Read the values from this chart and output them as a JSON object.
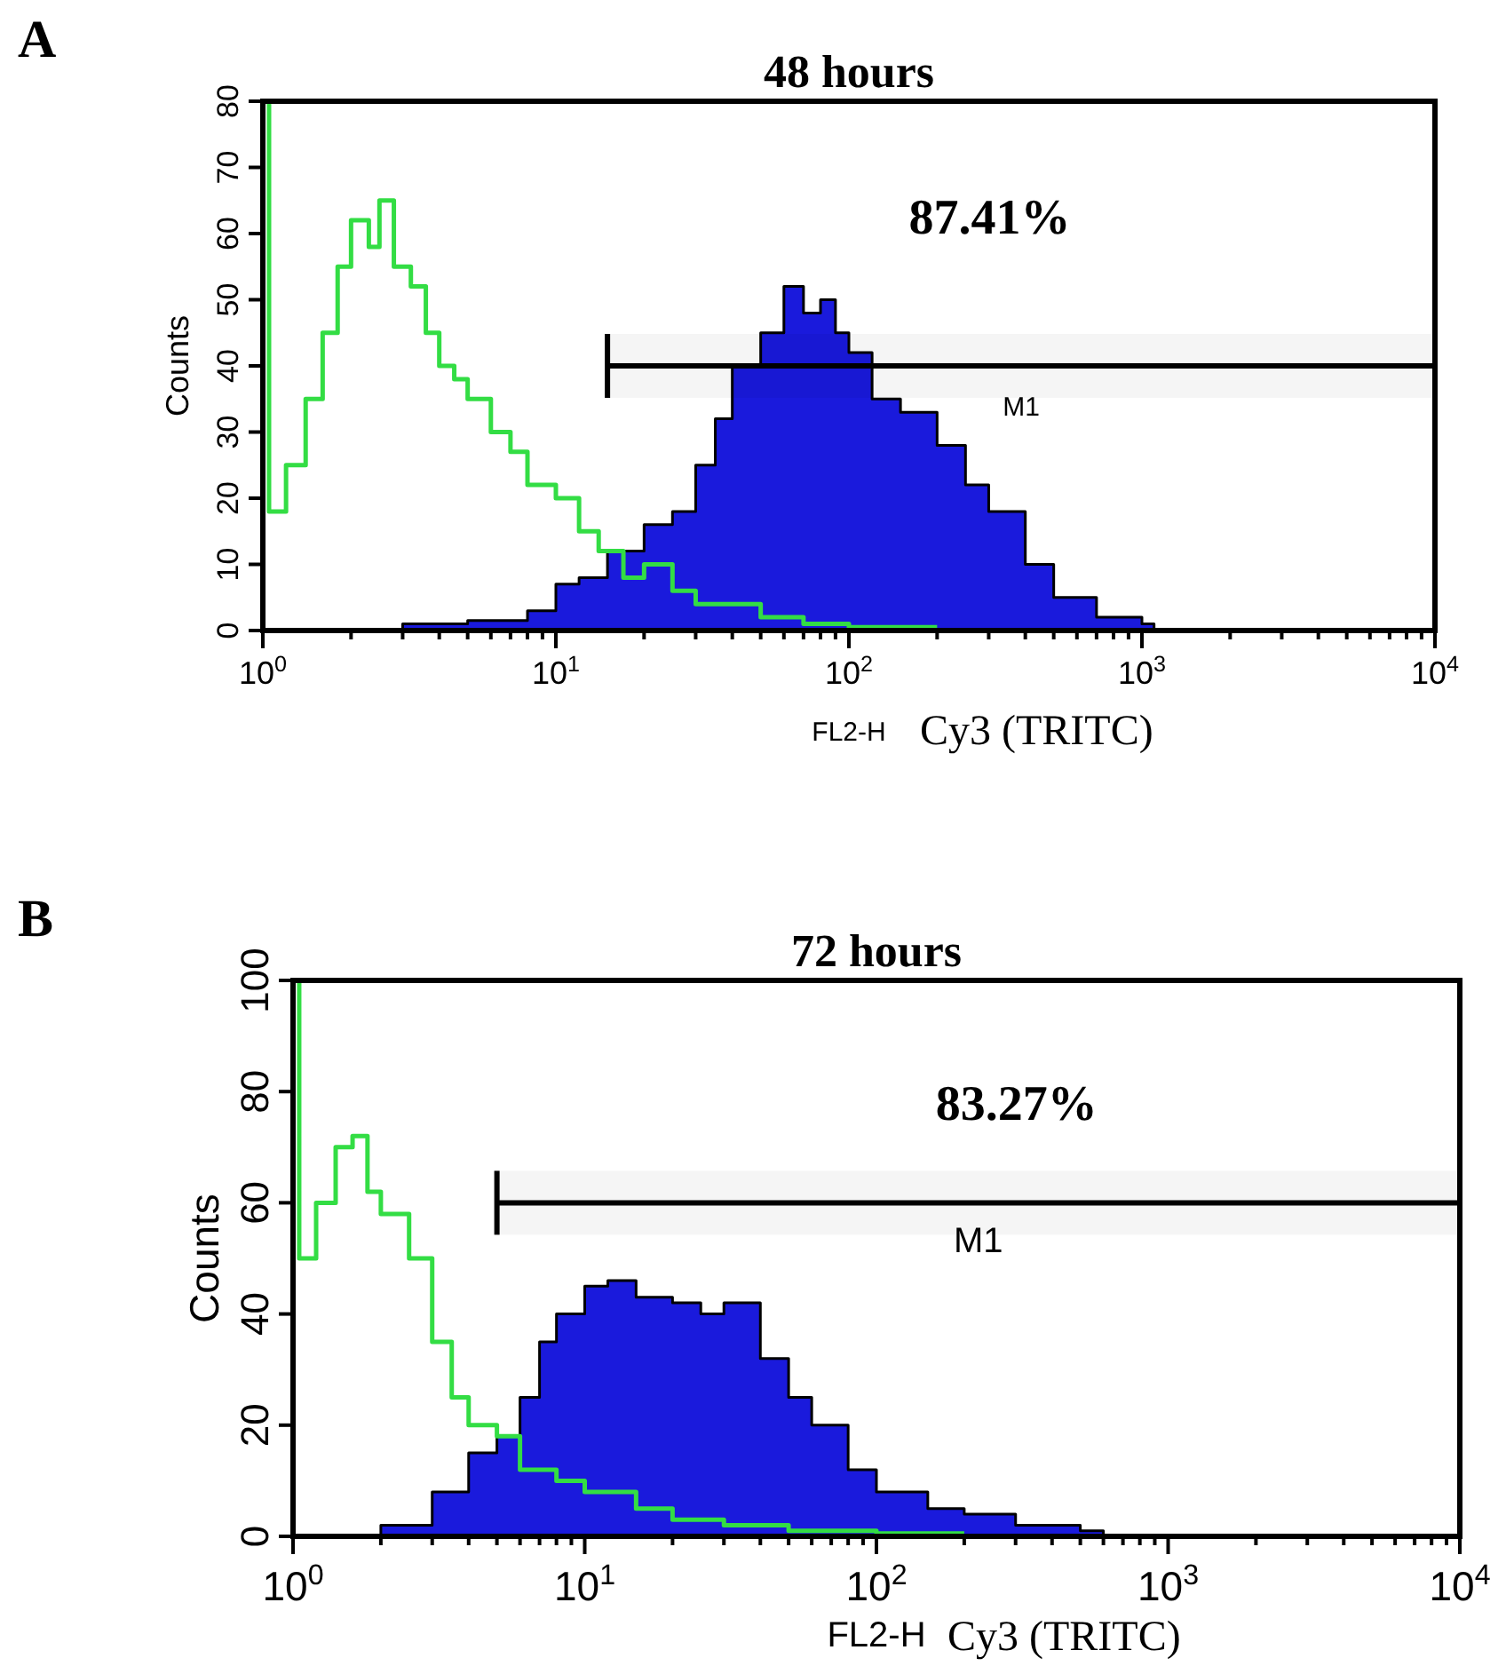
{
  "chart_data": [
    {
      "type": "area",
      "title": "48 hours",
      "xlabel": "FL2-H",
      "ylabel": "Counts",
      "annotations": [
        "A",
        "Cy3 (TRITC)",
        "87.41%"
      ],
      "bands": [
        {
          "axis": "x",
          "from": 15,
          "to": 10000,
          "label": "M1",
          "color": "#000000"
        }
      ],
      "log": "x",
      "xlim": [
        1,
        10000
      ],
      "ylim": [
        0,
        80
      ],
      "xticks": [
        {
          "value": 1,
          "label": "10$^{0}$"
        },
        {
          "value": 10,
          "label": "10$^{1}$"
        },
        {
          "value": 100,
          "label": "10$^{2}$"
        },
        {
          "value": 1000,
          "label": "10$^{3}$"
        },
        {
          "value": 10000,
          "label": "10$^{4}$"
        }
      ],
      "yticks": [
        0,
        10,
        20,
        30,
        40,
        50,
        60,
        70,
        80
      ],
      "series": [
        {
          "color": "#1a1adc",
          "x": [
            1,
            3,
            5,
            8,
            10,
            12,
            15,
            20,
            25,
            30,
            35,
            40,
            50,
            60,
            70,
            80,
            90,
            100,
            120,
            150,
            200,
            250,
            300,
            400,
            500,
            700,
            1000,
            1100
          ],
          "values": [
            0,
            1,
            1.5,
            3,
            7,
            8,
            12,
            16,
            18,
            25,
            32,
            40,
            45,
            52,
            48,
            50,
            45,
            42,
            35,
            33,
            28,
            22,
            18,
            10,
            5,
            2,
            1,
            0
          ]
        },
        {
          "type": "step",
          "color": "#33dd44",
          "x": [
            1,
            1.05,
            1.2,
            1.4,
            1.6,
            1.8,
            2,
            2.3,
            2.5,
            2.8,
            3.2,
            3.6,
            4,
            4.5,
            5,
            6,
            7,
            8,
            10,
            12,
            14,
            17,
            20,
            25,
            30,
            40,
            50,
            70,
            100,
            200
          ],
          "values": [
            80,
            18,
            25,
            35,
            45,
            55,
            62,
            58,
            65,
            55,
            52,
            45,
            40,
            38,
            35,
            30,
            27,
            22,
            20,
            15,
            12,
            8,
            10,
            6,
            4,
            4,
            2,
            1,
            0.5,
            0.5
          ]
        }
      ]
    },
    {
      "type": "area",
      "title": "72 hours",
      "xlabel": "FL2-H",
      "ylabel": "Counts",
      "annotations": [
        "B",
        "Cy3 (TRITC)",
        "83.27%"
      ],
      "bands": [
        {
          "axis": "x",
          "from": 5,
          "to": 10000,
          "label": "M1",
          "color": "#000000"
        }
      ],
      "log": "x",
      "xlim": [
        1,
        10000
      ],
      "ylim": [
        0,
        100
      ],
      "xticks": [
        {
          "value": 1,
          "label": "10$^{0}$"
        },
        {
          "value": 10,
          "label": "10$^{1}$"
        },
        {
          "value": 100,
          "label": "10$^{2}$"
        },
        {
          "value": 1000,
          "label": "10$^{3}$"
        },
        {
          "value": 10000,
          "label": "10$^{4}$"
        }
      ],
      "yticks": [
        0,
        20,
        40,
        60,
        80,
        100
      ],
      "series": [
        {
          "color": "#1a1adc",
          "x": [
            1,
            2,
            3,
            4,
            5,
            6,
            7,
            8,
            10,
            12,
            15,
            20,
            25,
            30,
            40,
            50,
            60,
            80,
            100,
            150,
            200,
            300,
            500,
            600
          ],
          "values": [
            0,
            2,
            8,
            15,
            18,
            25,
            35,
            40,
            45,
            46,
            43,
            42,
            40,
            42,
            32,
            25,
            20,
            12,
            8,
            5,
            4,
            2,
            1,
            0
          ]
        },
        {
          "type": "step",
          "color": "#33dd44",
          "x": [
            1,
            1.05,
            1.2,
            1.4,
            1.6,
            1.8,
            2,
            2.5,
            3,
            3.5,
            4,
            5,
            6,
            8,
            10,
            15,
            20,
            30,
            50,
            100,
            200
          ],
          "values": [
            100,
            50,
            60,
            70,
            72,
            62,
            58,
            50,
            35,
            25,
            20,
            18,
            12,
            10,
            8,
            5,
            3,
            2,
            1,
            0.5,
            0.5
          ]
        }
      ]
    }
  ]
}
